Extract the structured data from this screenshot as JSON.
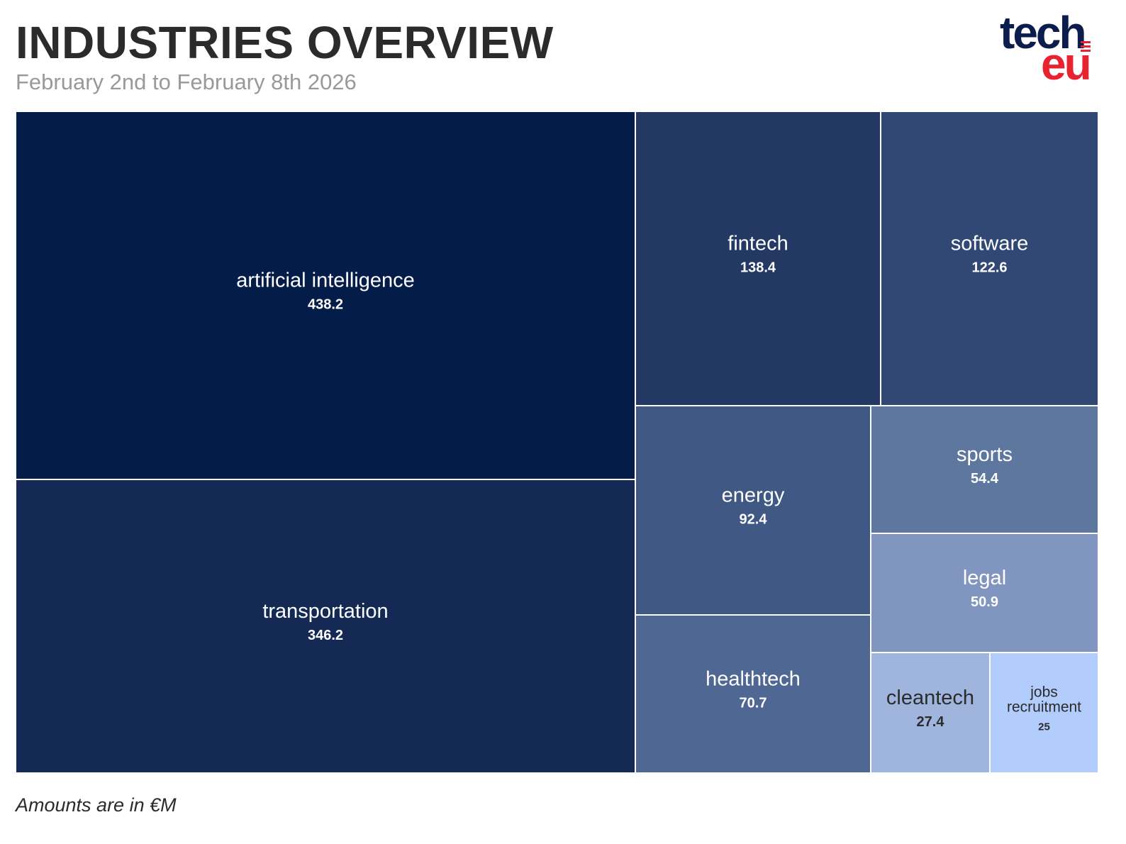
{
  "header": {
    "title": "INDUSTRIES OVERVIEW",
    "subtitle": "February 2nd to February 8th 2026"
  },
  "logo": {
    "top_text": "tech",
    "bottom_text": "eu",
    "colors": {
      "top": "#0b1d4d",
      "bottom": "#e8222e"
    }
  },
  "footnote": "Amounts are in €M",
  "chart_data": {
    "type": "treemap",
    "title": "INDUSTRIES OVERVIEW",
    "subtitle": "February 2nd to February 8th 2026",
    "unit": "€M",
    "items": [
      {
        "name": "artificial intelligence",
        "value": 438.2,
        "value_label": "438.2",
        "color": "#041c48",
        "text_color": "#ffffff"
      },
      {
        "name": "transportation",
        "value": 346.2,
        "value_label": "346.2",
        "color": "#142a55",
        "text_color": "#ffffff"
      },
      {
        "name": "fintech",
        "value": 138.4,
        "value_label": "138.4",
        "color": "#233964",
        "text_color": "#ffffff"
      },
      {
        "name": "software",
        "value": 122.6,
        "value_label": "122.6",
        "color": "#304873",
        "text_color": "#ffffff"
      },
      {
        "name": "energy",
        "value": 92.4,
        "value_label": "92.4",
        "color": "#405884",
        "text_color": "#ffffff"
      },
      {
        "name": "healthtech",
        "value": 70.7,
        "value_label": "70.7",
        "color": "#4f6893",
        "text_color": "#ffffff"
      },
      {
        "name": "sports",
        "value": 54.4,
        "value_label": "54.4",
        "color": "#5e779f",
        "text_color": "#ffffff"
      },
      {
        "name": "legal",
        "value": 50.9,
        "value_label": "50.9",
        "color": "#8096c0",
        "text_color": "#ffffff"
      },
      {
        "name": "cleantech",
        "value": 27.4,
        "value_label": "27.4",
        "color": "#a0b5dd",
        "text_color": "#2b2b2b"
      },
      {
        "name": "jobs recruitment",
        "value": 25,
        "value_label": "25",
        "color": "#b2ccfc",
        "text_color": "#2b2b2b"
      }
    ]
  }
}
